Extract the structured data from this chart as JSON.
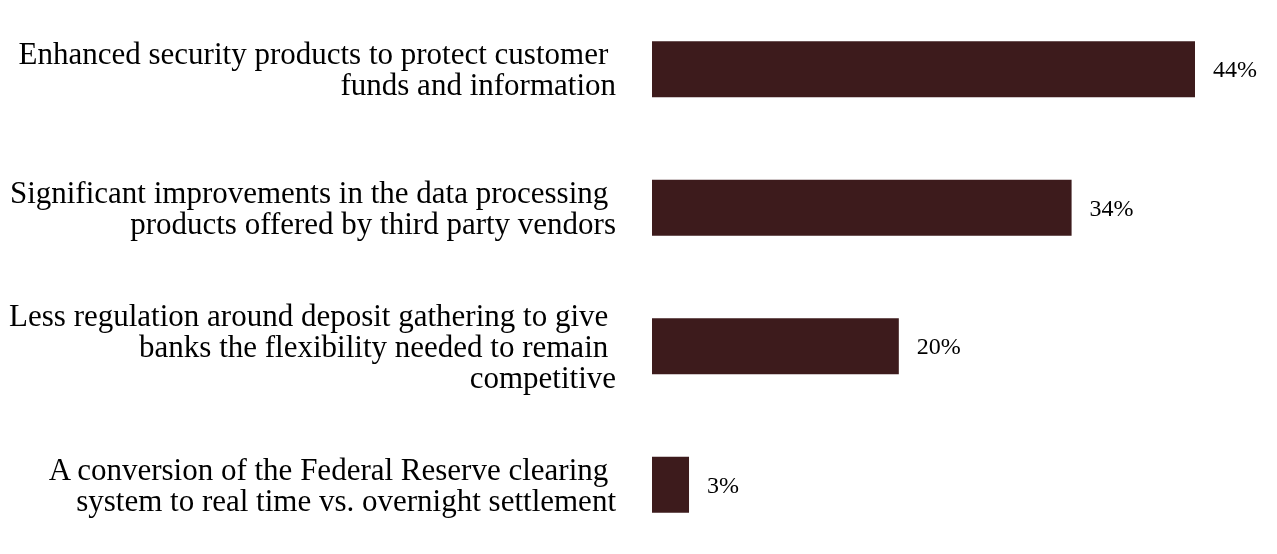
{
  "chart_data": {
    "type": "bar",
    "orientation": "horizontal",
    "categories": [
      "Enhanced security products to protect customer funds and information",
      "Significant improvements in the data processing products offered by third party vendors",
      "Less regulation around deposit gathering to give banks the flexibility needed to remain competitive",
      "A conversion of the Federal Reserve clearing system to real time vs. overnight settlement"
    ],
    "values": [
      44,
      34,
      20,
      3
    ],
    "value_labels": [
      "44%",
      "34%",
      "20%",
      "3%"
    ],
    "color": "#3d1b1c"
  }
}
